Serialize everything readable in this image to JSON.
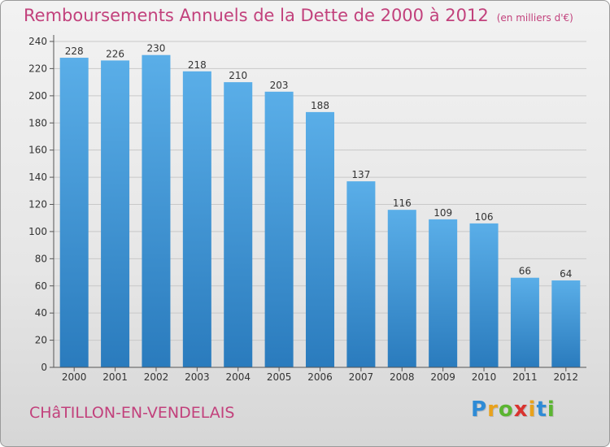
{
  "title": "Remboursements Annuels de la Dette de 2000 à 2012",
  "subtitle": "(en milliers d'€)",
  "commune": "CHâTILLON-EN-VENDELAIS",
  "logo": {
    "letters": [
      "P",
      "r",
      "o",
      "x",
      "i",
      "t",
      "i"
    ],
    "colors": [
      "#2e8bd6",
      "#e9a21c",
      "#5bb531",
      "#d9332f",
      "#e9a21c",
      "#2e8bd6",
      "#5bb531"
    ]
  },
  "colors": {
    "bar_top": "#5aaee8",
    "bar_bottom": "#2a7bbd",
    "title": "#c2417c",
    "axis": "#555555",
    "grid": "#c8c8c8"
  },
  "chart_data": {
    "type": "bar",
    "title": "Remboursements Annuels de la Dette de 2000 à 2012",
    "categories": [
      "2000",
      "2001",
      "2002",
      "2003",
      "2004",
      "2005",
      "2006",
      "2007",
      "2008",
      "2009",
      "2010",
      "2011",
      "2012"
    ],
    "values": [
      228,
      226,
      230,
      218,
      210,
      203,
      188,
      137,
      116,
      109,
      106,
      66,
      64
    ],
    "xlabel": "",
    "ylabel": "",
    "ylim": [
      0,
      240
    ],
    "yticks": [
      0,
      20,
      40,
      60,
      80,
      100,
      120,
      140,
      160,
      180,
      200,
      220,
      240
    ],
    "grid": true
  }
}
